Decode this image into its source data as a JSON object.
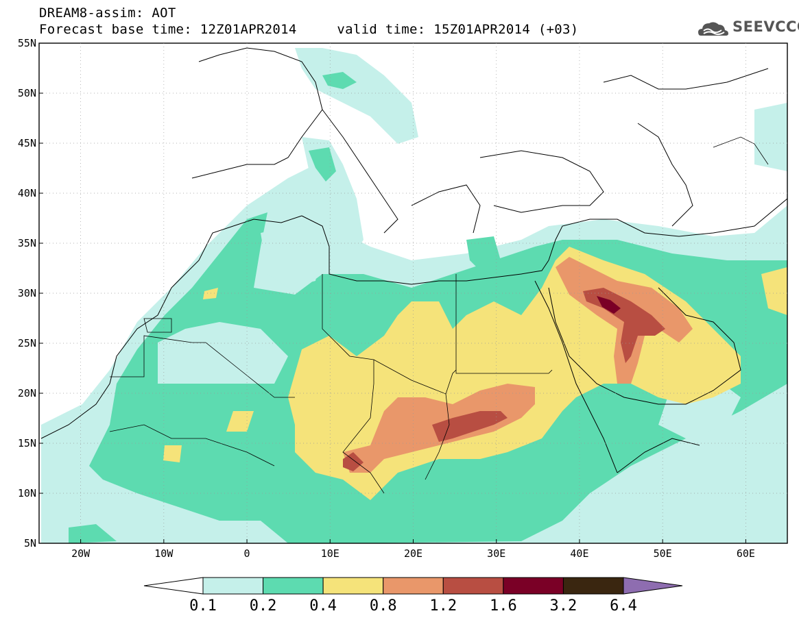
{
  "title": {
    "line1": "DREAM8-assim: AOT",
    "line2_base": "Forecast base time: 12Z01APR2014",
    "line2_valid": "valid time: 15Z01APR2014 (+03)"
  },
  "logo": {
    "text": "SEEVCCC",
    "icon": "cloud-logo-icon"
  },
  "map": {
    "lon_range": [
      -25,
      65
    ],
    "lat_range": [
      5,
      55
    ],
    "lat_ticks": [
      "55N",
      "50N",
      "45N",
      "40N",
      "35N",
      "30N",
      "25N",
      "20N",
      "15N",
      "10N",
      "5N"
    ],
    "lon_ticks": [
      "20W",
      "10W",
      "0",
      "10E",
      "20E",
      "30E",
      "40E",
      "50E",
      "60E"
    ]
  },
  "colorbar": {
    "labels": [
      "0.1",
      "0.2",
      "0.4",
      "0.8",
      "1.2",
      "1.6",
      "3.2",
      "6.4"
    ],
    "colors": [
      "#ffffff",
      "#c5f0ea",
      "#5ddbb0",
      "#f5e37a",
      "#e9976a",
      "#b84e42",
      "#7a0026",
      "#3a2610",
      "#8e6db0"
    ]
  }
}
